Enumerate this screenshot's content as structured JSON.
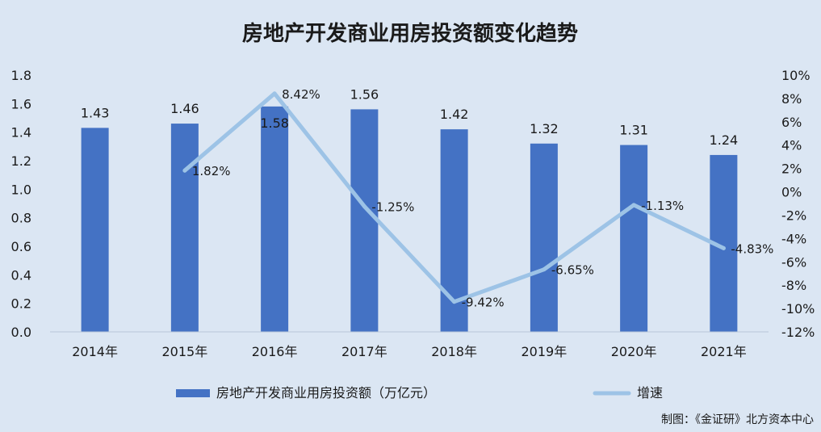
{
  "chart_data": {
    "type": "bar",
    "title": "房地产开发商业用房投资额变化趋势",
    "categories": [
      "2014年",
      "2015年",
      "2016年",
      "2017年",
      "2018年",
      "2019年",
      "2020年",
      "2021年"
    ],
    "series": [
      {
        "name": "房地产开发商业用房投资额（万亿元）",
        "type": "bar",
        "axis": "left",
        "values": [
          1.43,
          1.46,
          1.58,
          1.56,
          1.42,
          1.32,
          1.31,
          1.24
        ],
        "labels": [
          "1.43",
          "1.46",
          "1.58",
          "1.56",
          "1.42",
          "1.32",
          "1.31",
          "1.24"
        ],
        "color": "#4472c4"
      },
      {
        "name": "增速",
        "type": "line",
        "axis": "right",
        "values": [
          null,
          1.82,
          8.42,
          -1.25,
          -9.42,
          -6.65,
          -1.13,
          -4.83
        ],
        "labels": [
          "",
          "1.82%",
          "8.42%",
          "-1.25%",
          "-9.42%",
          "-6.65%",
          "-1.13%",
          "-4.83%"
        ],
        "color": "#9dc3e6"
      }
    ],
    "y_left": {
      "range": [
        0,
        1.8
      ],
      "ticks": [
        "0.0",
        "0.2",
        "0.4",
        "0.6",
        "0.8",
        "1.0",
        "1.2",
        "1.4",
        "1.6",
        "1.8"
      ]
    },
    "y_right": {
      "range": [
        -12,
        10
      ],
      "ticks": [
        "-12%",
        "-10%",
        "-8%",
        "-6%",
        "-4%",
        "-2%",
        "0%",
        "2%",
        "4%",
        "6%",
        "8%",
        "10%"
      ]
    },
    "grid": false,
    "legend": "bottom"
  },
  "source_note": "制图：《金证研》北方资本中心"
}
